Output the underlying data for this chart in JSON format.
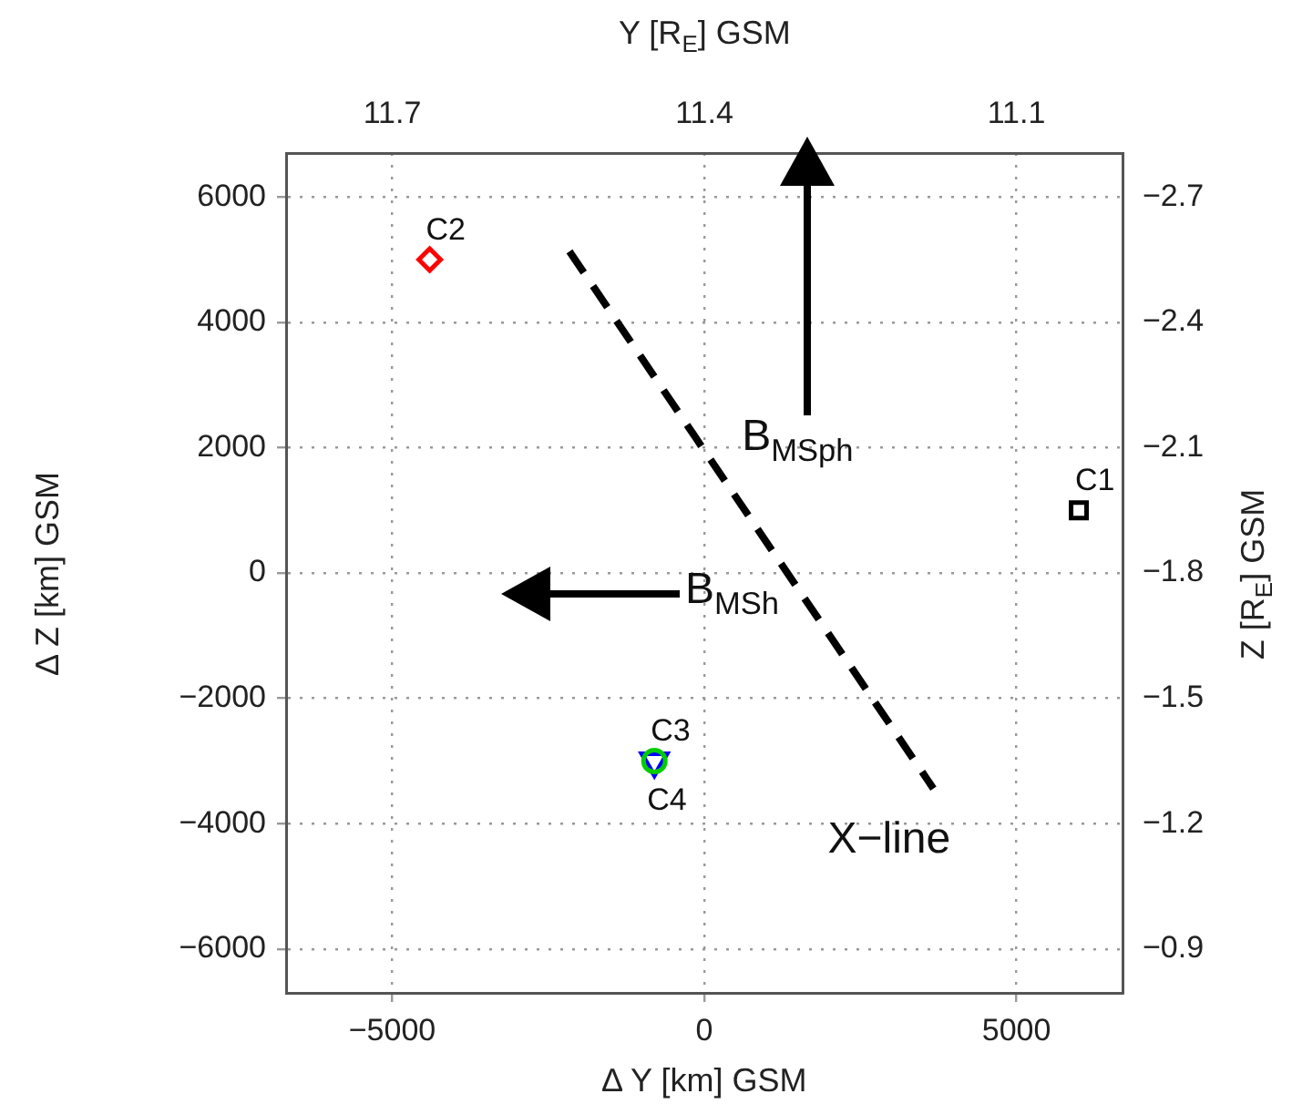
{
  "chart_data": {
    "type": "scatter",
    "xlabel": "Δ Y [km] GSM",
    "ylabel": "Δ Z [km] GSM",
    "x2label": "Y [R$_{E}$] GSM",
    "y2label": "Z [R$_{E}$] GSM",
    "xlim": [
      -6700,
      6700
    ],
    "xticks": [
      -5000,
      0,
      5000
    ],
    "ylim": [
      -6700,
      6700
    ],
    "yticks": [
      -6000,
      -4000,
      -2000,
      0,
      2000,
      4000,
      6000
    ],
    "x2lim": [
      11.802,
      10.998
    ],
    "x2ticks": [
      11.7,
      11.4,
      11.1
    ],
    "y2lim": [
      -0.795,
      -2.805
    ],
    "y2ticks": [
      -2.7,
      -2.4,
      -2.1,
      -1.8,
      -1.5,
      -1.2,
      -0.9
    ],
    "grid": true,
    "legend": false,
    "series": [
      {
        "name": "C1",
        "color": "#000000",
        "marker": "square",
        "x": [
          6000
        ],
        "values": [
          1000
        ]
      },
      {
        "name": "C2",
        "color": "#ff0000",
        "marker": "diamond",
        "x": [
          -4400
        ],
        "values": [
          5000
        ]
      },
      {
        "name": "C3",
        "color": "#00cc00",
        "marker": "circle",
        "x": [
          -800
        ],
        "values": [
          -3000
        ]
      },
      {
        "name": "C4",
        "color": "#0000ff",
        "marker": "triangle",
        "x": [
          -800
        ],
        "values": [
          -3000
        ]
      },
      {
        "name": "X−line",
        "type": "line",
        "line_style": "dashed",
        "color": "#000000",
        "x": [
          -2160,
          3670
        ],
        "values": [
          5130,
          -3440
        ]
      }
    ],
    "annotations": [
      "B$_{MSph}$",
      "B$_{MSh}$"
    ]
  }
}
